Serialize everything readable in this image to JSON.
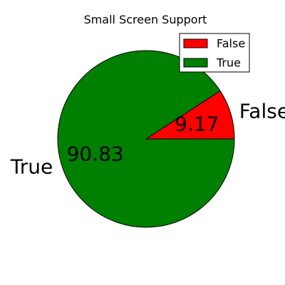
{
  "chart_data": {
    "type": "pie",
    "title": "Small Screen Support",
    "slices": [
      {
        "label": "False",
        "value": 9.17,
        "display": "9.17",
        "color": "#ff0000"
      },
      {
        "label": "True",
        "value": 90.83,
        "display": "90.83",
        "color": "#008000"
      }
    ],
    "start_angle_deg": 0,
    "direction": "counterclockwise",
    "legend": {
      "placement": "top-right",
      "entries": [
        "False",
        "True"
      ]
    }
  }
}
